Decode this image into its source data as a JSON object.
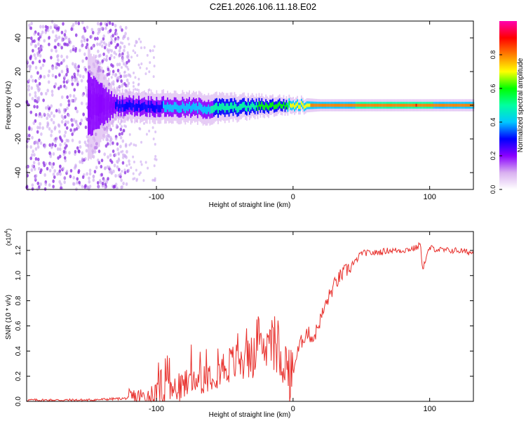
{
  "figure": {
    "title": "C2E1.2026.106.11.18.E02"
  },
  "chart_data": [
    {
      "type": "heatmap",
      "title": "C2E1.2026.106.11.18.E02",
      "xlabel": "Height of straight line (km)",
      "ylabel": "Frequency (Hz)",
      "xlim": [
        -195,
        132
      ],
      "ylim": [
        -50,
        50
      ],
      "x_ticks": [
        "-100",
        "0",
        "100"
      ],
      "y_ticks": [
        "40",
        "20",
        "0",
        "-20",
        "-40"
      ],
      "colorbar": {
        "label": "Normalized spectral amplitude",
        "range": [
          0,
          1
        ],
        "ticks": [
          "0.0",
          "0.2",
          "0.4",
          "0.6",
          "0.8"
        ],
        "colors": [
          "#ffffff",
          "#d9b0f0",
          "#8a00ff",
          "#0000ff",
          "#00c8ff",
          "#00ffa0",
          "#00ff00",
          "#ffff00",
          "#ff8000",
          "#ff0000",
          "#ff00b0"
        ]
      },
      "description_points": [
        {
          "x": -195,
          "center_hz": 0,
          "bandwidth_hz": 100,
          "amplitude": 0.1
        },
        {
          "x": -130,
          "center_hz": 0,
          "bandwidth_hz": 10,
          "amplitude": 0.25
        },
        {
          "x": -60,
          "center_hz": -2,
          "bandwidth_hz": 10,
          "amplitude": 0.45
        },
        {
          "x": -10,
          "center_hz": 0,
          "bandwidth_hz": 6,
          "amplitude": 0.6
        },
        {
          "x": 20,
          "center_hz": 0,
          "bandwidth_hz": 4,
          "amplitude": 0.8
        },
        {
          "x": 90,
          "center_hz": 0,
          "bandwidth_hz": 4,
          "amplitude": 0.85
        },
        {
          "x": 130,
          "center_hz": 0,
          "bandwidth_hz": 4,
          "amplitude": 0.75
        }
      ]
    },
    {
      "type": "line",
      "xlabel": "Height of straight line (km)",
      "ylabel": "SNR (10 * v/v)",
      "y_multiplier": "(x10",
      "y_multiplier_exp": "4",
      "y_multiplier_close": ")",
      "xlim": [
        -195,
        132
      ],
      "ylim": [
        0,
        1.35
      ],
      "x_ticks": [
        "-100",
        "0",
        "100"
      ],
      "y_ticks": [
        "0.0",
        "0.2",
        "0.4",
        "0.6",
        "0.8",
        "1.0",
        "1.2"
      ],
      "color": "#e8322e",
      "series": [
        {
          "name": "SNR",
          "x": [
            -195,
            -150,
            -130,
            -110,
            -95,
            -85,
            -75,
            -65,
            -55,
            -45,
            -35,
            -30,
            -25,
            -20,
            -15,
            -10,
            -5,
            -2,
            0,
            5,
            10,
            15,
            20,
            25,
            30,
            35,
            40,
            45,
            50,
            60,
            70,
            80,
            90,
            93,
            95,
            100,
            110,
            120,
            132
          ],
          "y": [
            0.01,
            0.01,
            0.02,
            0.03,
            0.06,
            0.1,
            0.15,
            0.2,
            0.25,
            0.3,
            0.33,
            0.35,
            0.38,
            0.42,
            0.42,
            0.35,
            0.3,
            0.12,
            0.25,
            0.45,
            0.55,
            0.5,
            0.65,
            0.8,
            0.92,
            1.0,
            1.05,
            1.1,
            1.18,
            1.18,
            1.2,
            1.2,
            1.22,
            1.25,
            1.06,
            1.22,
            1.2,
            1.2,
            1.18
          ]
        }
      ]
    }
  ]
}
